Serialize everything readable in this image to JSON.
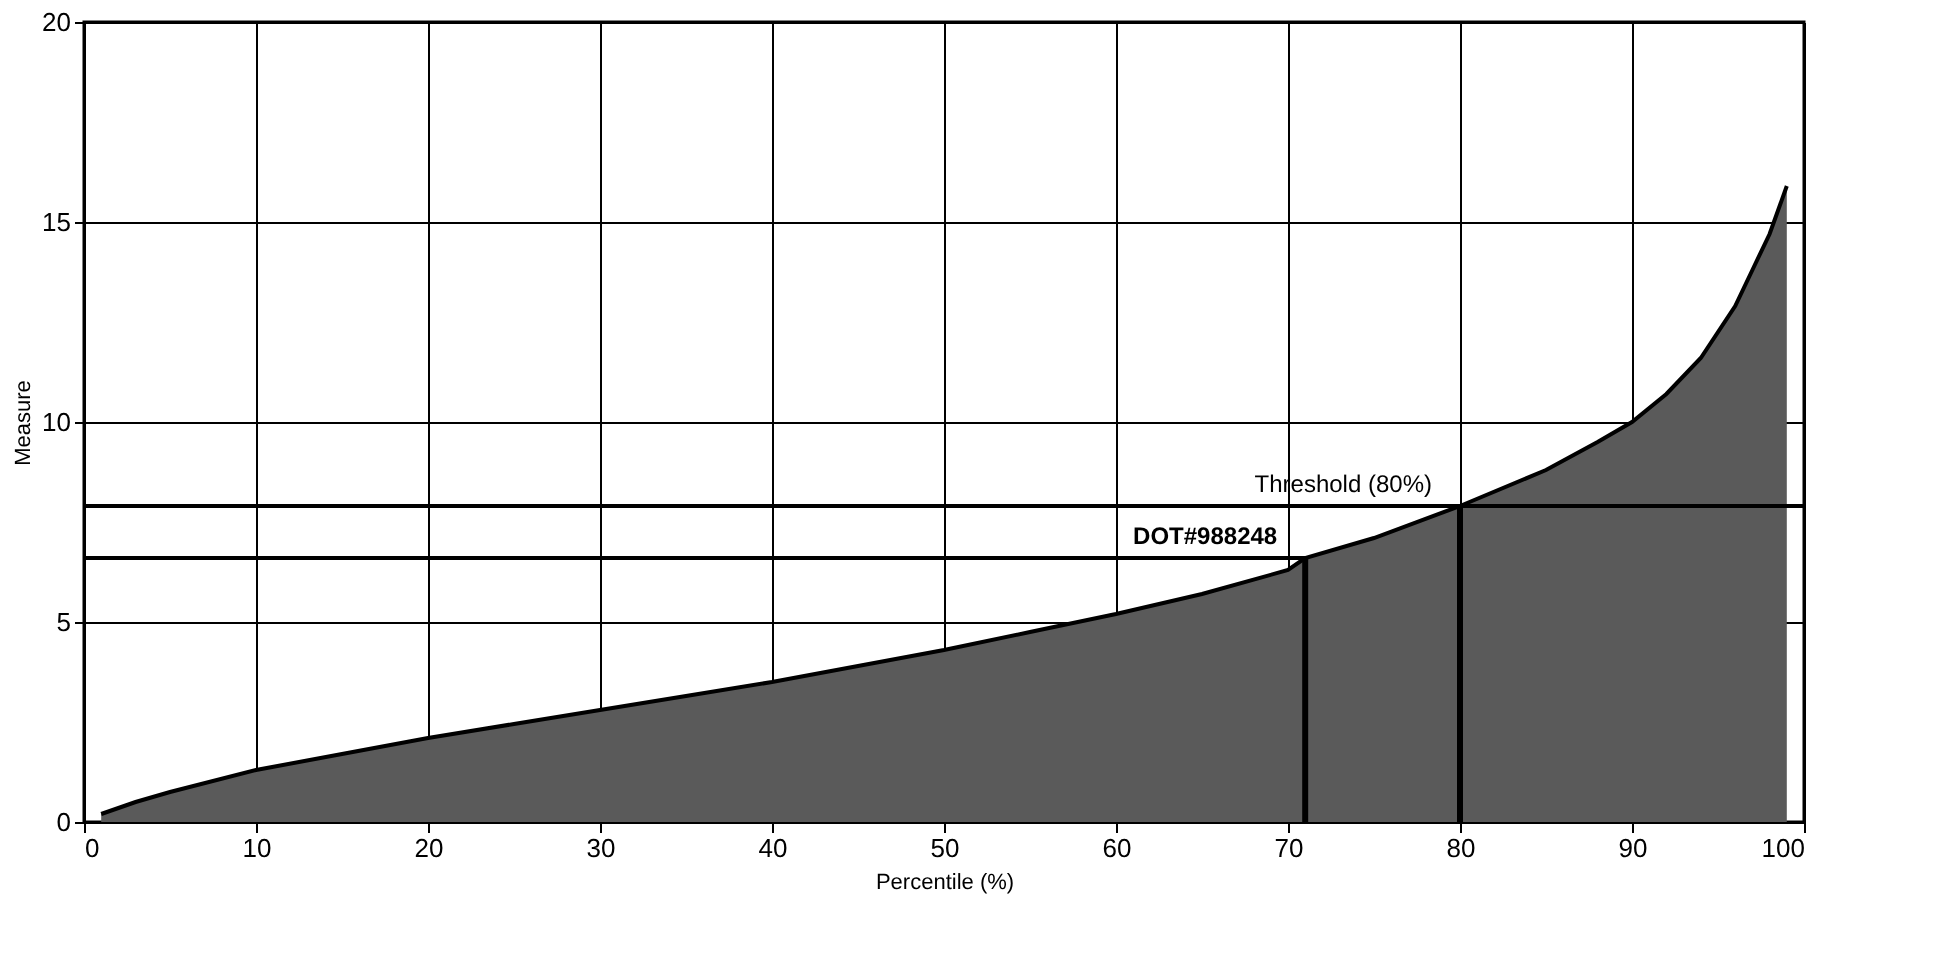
{
  "chart_data": {
    "type": "area",
    "xlabel": "Percentile (%)",
    "ylabel": "Measure",
    "series": [
      {
        "color": "#5a5a5a",
        "x": [
          1,
          3,
          5,
          10,
          15,
          20,
          25,
          30,
          35,
          40,
          45,
          50,
          55,
          60,
          65,
          70,
          71,
          75,
          80,
          85,
          88,
          90,
          92,
          94,
          96,
          97,
          98,
          99
        ],
        "values": [
          0.2,
          0.5,
          0.75,
          1.3,
          1.7,
          2.1,
          2.45,
          2.8,
          3.15,
          3.5,
          3.9,
          4.3,
          4.75,
          5.2,
          5.7,
          6.3,
          6.6,
          7.1,
          7.9,
          8.8,
          9.5,
          10.0,
          10.7,
          11.6,
          12.9,
          13.8,
          14.7,
          15.9
        ]
      }
    ],
    "xlim": [
      0,
      100
    ],
    "xticks": [
      0,
      10,
      20,
      30,
      40,
      50,
      60,
      70,
      80,
      90,
      100
    ],
    "ylim": [
      0,
      20
    ],
    "yticks": [
      0,
      5,
      10,
      15,
      20
    ],
    "grid": true,
    "ref_lines": [
      {
        "axis": "y",
        "value": 7.9,
        "label": "Threshold (80%)"
      },
      {
        "axis": "y",
        "value": 6.6,
        "label": "DOT#988248"
      },
      {
        "axis": "x",
        "value": 71
      },
      {
        "axis": "x",
        "value": 80
      }
    ]
  }
}
